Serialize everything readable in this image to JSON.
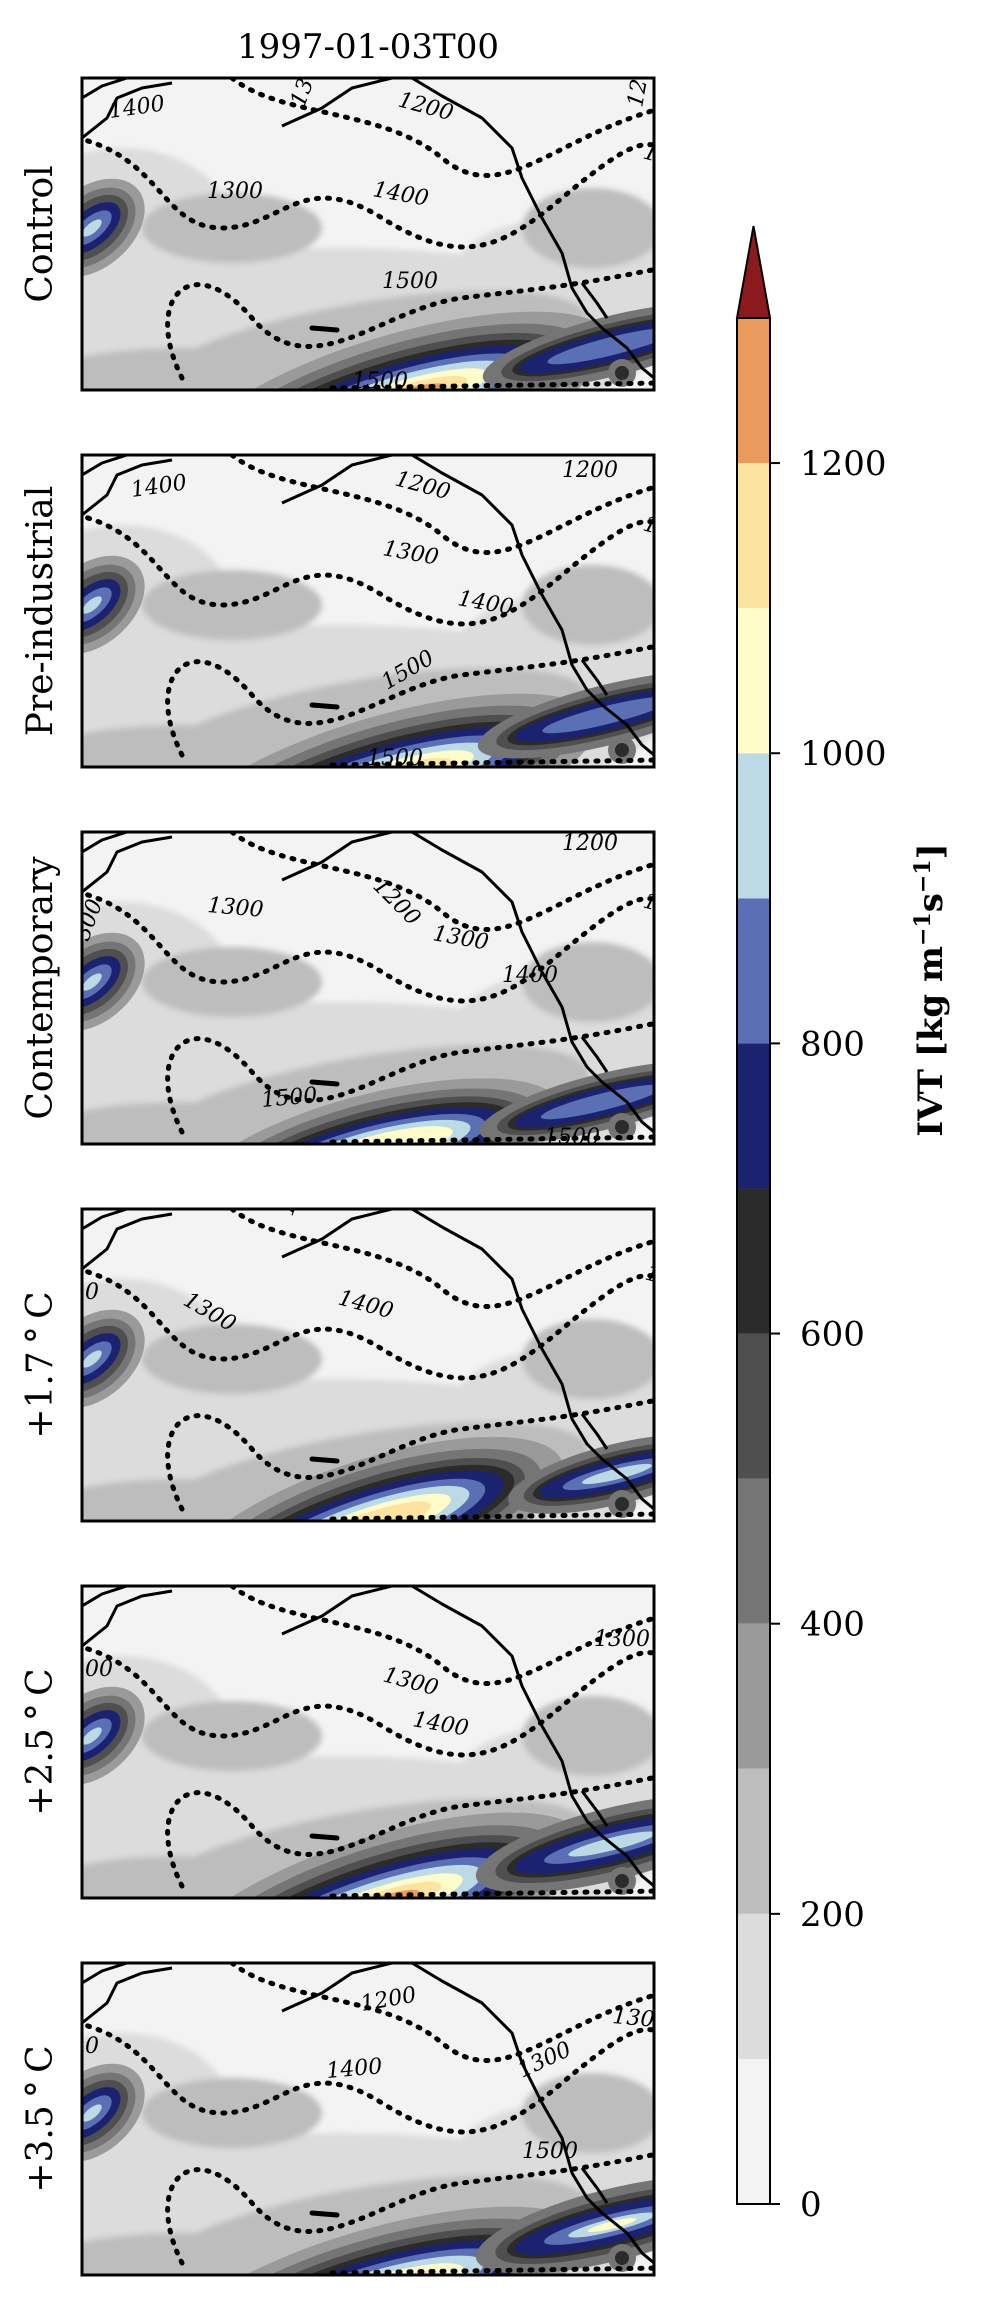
{
  "figure": {
    "title": "1997-01-03T00"
  },
  "panels": [
    {
      "label": "Control",
      "contours": [
        "1400",
        "130",
        "1200",
        "120",
        "1300",
        "1400",
        "130",
        "1500",
        "1500"
      ]
    },
    {
      "label": "Pre-industrial",
      "contours": [
        "1400",
        "1200",
        "1200",
        "1300",
        "130",
        "1400",
        "1500",
        "1500"
      ]
    },
    {
      "label": "Contemporary",
      "contours": [
        "300",
        "1300",
        "1200",
        "1200",
        "1300",
        "130",
        "1400",
        "1500",
        "1500"
      ]
    },
    {
      "label": "+1.7$^\\circ$C",
      "display": "+1.7 ° C",
      "contours": [
        "0",
        "130",
        "1300",
        "1400",
        "13"
      ]
    },
    {
      "label": "+2.5$^\\circ$C",
      "display": "+2.5 ° C",
      "contours": [
        "00",
        "1300",
        "1300",
        "1400"
      ]
    },
    {
      "label": "+3.5$^\\circ$C",
      "display": "+3.5 ° C",
      "contours": [
        "0",
        "1200",
        "1300",
        "1400",
        "1300",
        "1500"
      ]
    }
  ],
  "colorbar": {
    "label_main": "IVT [kg m",
    "label_exp1": "−1",
    "label_mid": "s",
    "label_exp2": "−1",
    "label_end": "]",
    "ticks": [
      "0",
      "200",
      "400",
      "600",
      "800",
      "1000",
      "1200"
    ],
    "tick_values": [
      0,
      200,
      400,
      600,
      800,
      1000,
      1200
    ],
    "levels": [
      0,
      100,
      200,
      300,
      400,
      500,
      600,
      700,
      800,
      900,
      1000,
      1100,
      1200,
      1300
    ],
    "colors": [
      "#f3f3f3",
      "#dcdcdc",
      "#bdbdbd",
      "#9a9a9a",
      "#757575",
      "#4f4f4f",
      "#2b2b2b",
      "#1b2370",
      "#5a6fb4",
      "#bcd9e6",
      "#fffccc",
      "#fde3a0",
      "#e89b5d",
      "#c63b2c"
    ],
    "extend_color": "#8b1a1e",
    "extend": "max"
  },
  "chart_data": {
    "type": "heatmap",
    "title": "1997-01-03T00",
    "variable": "IVT [kg m⁻¹ s⁻¹]",
    "panels": [
      "Control",
      "Pre-industrial",
      "Contemporary",
      "+1.7°C",
      "+2.5°C",
      "+3.5°C"
    ],
    "colorbar_range": [
      0,
      1300
    ],
    "colorbar_ticks": [
      0,
      200,
      400,
      600,
      800,
      1000,
      1200
    ],
    "colorbar_extend": "max",
    "contour_style": "dotted",
    "contour_levels_labeled": [
      1200,
      1300,
      1400,
      1500
    ]
  }
}
